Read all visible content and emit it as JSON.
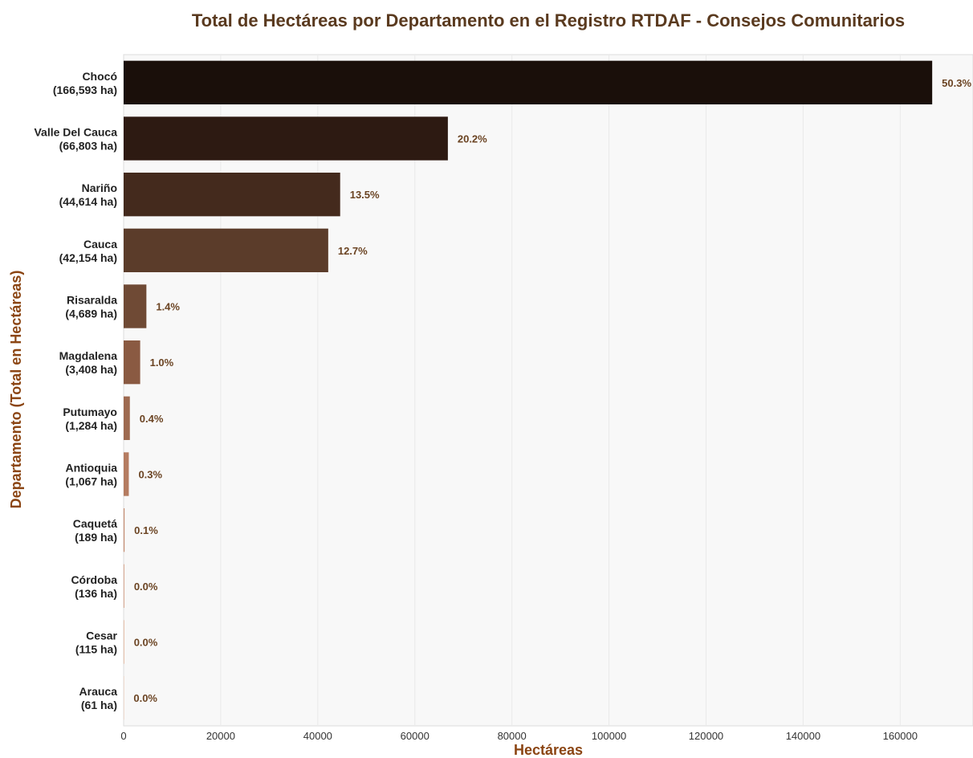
{
  "colors": {
    "title": "#5a3a1f",
    "axis_title": "#8b4513",
    "pct_label": "#6b4423",
    "plot_bg": "#f8f8f8",
    "grid": "#e9e9e9",
    "bars": [
      "#1a0f0a",
      "#2d1a12",
      "#442a1d",
      "#5b3c2a",
      "#6f4a35",
      "#8a5a42",
      "#9e6a50",
      "#b57c61",
      "#c58a6e",
      "#d39a7d",
      "#e0aa8c",
      "#ebb99c"
    ]
  },
  "chart_data": {
    "type": "bar",
    "orientation": "horizontal",
    "title": "Total de Hectáreas por Departamento en el Registro RTDAF - Consejos Comunitarios",
    "xlabel": "Hectáreas",
    "ylabel": "Departamento (Total en Hectáreas)",
    "xlim": [
      0,
      175000
    ],
    "xticks": [
      "0",
      "20000",
      "40000",
      "60000",
      "80000",
      "100000",
      "120000",
      "140000",
      "160000"
    ],
    "grid": true,
    "categories": [
      {
        "name": "Chocó",
        "total_label": "(166,593 ha)",
        "value": 166593,
        "pct_label": "50.3%"
      },
      {
        "name": "Valle Del Cauca",
        "total_label": "(66,803 ha)",
        "value": 66803,
        "pct_label": "20.2%"
      },
      {
        "name": "Nariño",
        "total_label": "(44,614 ha)",
        "value": 44614,
        "pct_label": "13.5%"
      },
      {
        "name": "Cauca",
        "total_label": "(42,154 ha)",
        "value": 42154,
        "pct_label": "12.7%"
      },
      {
        "name": "Risaralda",
        "total_label": "(4,689 ha)",
        "value": 4689,
        "pct_label": "1.4%"
      },
      {
        "name": "Magdalena",
        "total_label": "(3,408 ha)",
        "value": 3408,
        "pct_label": "1.0%"
      },
      {
        "name": "Putumayo",
        "total_label": "(1,284 ha)",
        "value": 1284,
        "pct_label": "0.4%"
      },
      {
        "name": "Antioquia",
        "total_label": "(1,067 ha)",
        "value": 1067,
        "pct_label": "0.3%"
      },
      {
        "name": "Caquetá",
        "total_label": "(189 ha)",
        "value": 189,
        "pct_label": "0.1%"
      },
      {
        "name": "Córdoba",
        "total_label": "(136 ha)",
        "value": 136,
        "pct_label": "0.0%"
      },
      {
        "name": "Cesar",
        "total_label": "(115 ha)",
        "value": 115,
        "pct_label": "0.0%"
      },
      {
        "name": "Arauca",
        "total_label": "(61 ha)",
        "value": 61,
        "pct_label": "0.0%"
      }
    ]
  }
}
